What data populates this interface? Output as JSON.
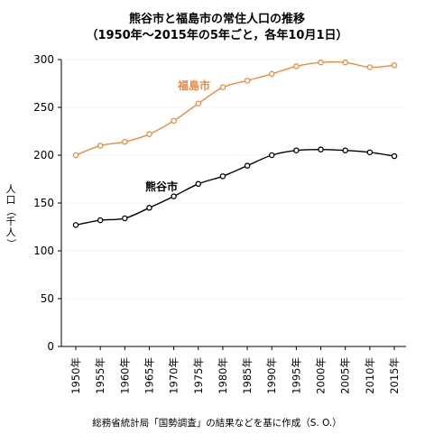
{
  "chart_data": {
    "type": "line",
    "title": "熊谷市と福島市の常住人口の推移",
    "subtitle": "（1950年～2015年の5年ごと，各年10月1日）",
    "ylabel": "人口（千人）",
    "xlabel": "",
    "caption": "総務省統計局「国勢調査」の結果などを基に作成（S. O.）",
    "ylim": [
      0,
      300
    ],
    "yticks": [
      0,
      50,
      100,
      150,
      200,
      250,
      300
    ],
    "grid": true,
    "legend": "none (series labeled directly on lines)",
    "categories": [
      "1950年",
      "1955年",
      "1960年",
      "1965年",
      "1970年",
      "1975年",
      "1980年",
      "1985年",
      "1990年",
      "1995年",
      "2000年",
      "2005年",
      "2010年",
      "2015年"
    ],
    "series": [
      {
        "name": "福島市",
        "color": "#F08A3C",
        "values": [
          200,
          210,
          214,
          222,
          236,
          254,
          271,
          278,
          285,
          293,
          297,
          297,
          292,
          294
        ]
      },
      {
        "name": "熊谷市",
        "color": "#000000",
        "values": [
          127,
          132,
          134,
          145,
          157,
          170,
          178,
          189,
          200,
          205,
          206,
          205,
          203,
          199
        ]
      }
    ]
  }
}
